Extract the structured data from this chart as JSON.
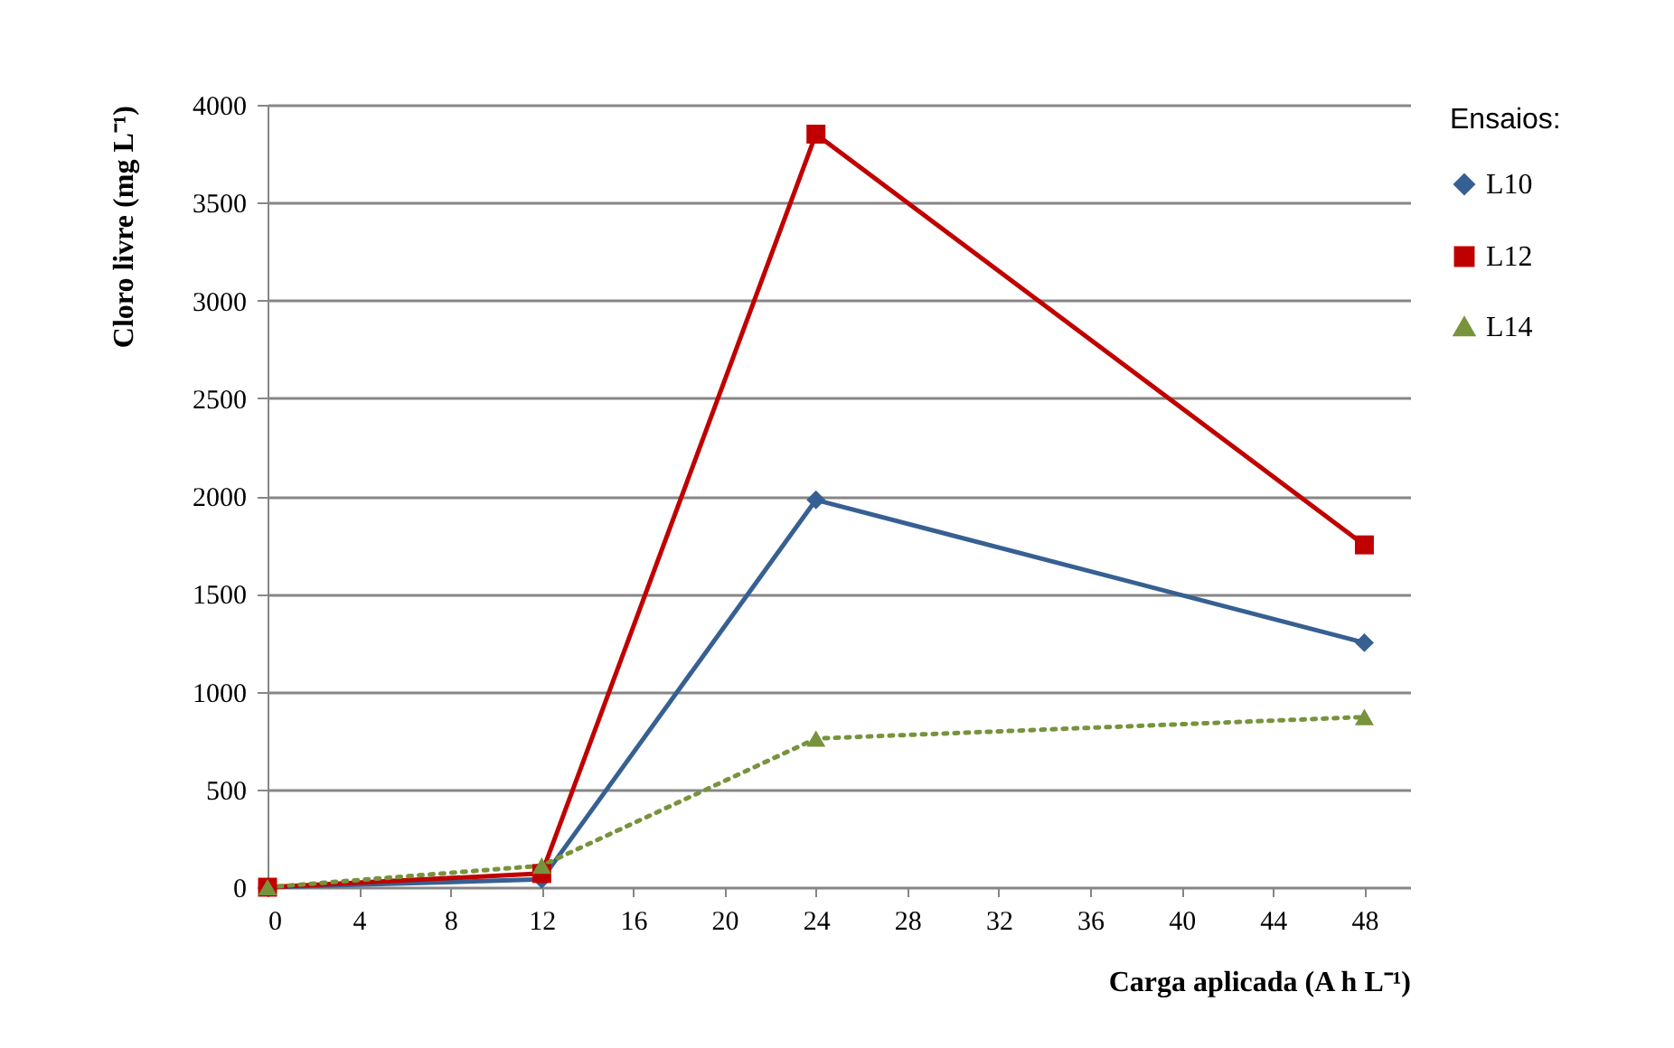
{
  "chart_data": {
    "type": "line",
    "xlabel": "Carga aplicada (A h L⁻¹)",
    "ylabel": "Cloro livre (mg L⁻¹)",
    "legend_title": "Ensaios:",
    "x": [
      0,
      12,
      24,
      48
    ],
    "series": [
      {
        "name": "L10",
        "color": "#376092",
        "values": [
          0,
          40,
          1980,
          1250
        ],
        "marker": "diamond",
        "line_style": "solid"
      },
      {
        "name": "L12",
        "color": "#c00000",
        "values": [
          0,
          70,
          3850,
          1750
        ],
        "marker": "square",
        "line_style": "solid"
      },
      {
        "name": "L14",
        "color": "#77933c",
        "values": [
          0,
          110,
          760,
          870
        ],
        "marker": "triangle",
        "line_style": "dotted"
      }
    ],
    "xlim": [
      0,
      50
    ],
    "xticks": [
      0,
      4,
      8,
      12,
      16,
      20,
      24,
      28,
      32,
      36,
      40,
      44,
      48
    ],
    "ylim": [
      0,
      4000
    ],
    "yticks": [
      0,
      500,
      1000,
      1500,
      2000,
      2500,
      3000,
      3500,
      4000
    ],
    "grid": "y",
    "legend": "right"
  }
}
